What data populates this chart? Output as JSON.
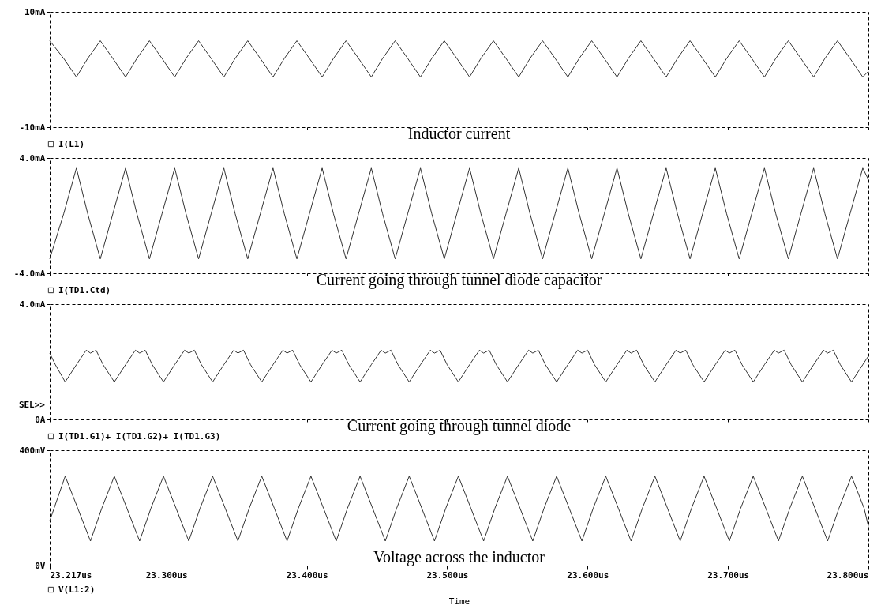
{
  "chart_data": [
    {
      "type": "line",
      "xlim": [
        23.217,
        23.8
      ],
      "xticks": [
        {
          "value": 23.217,
          "label": null
        },
        {
          "value": 23.3,
          "label": null
        },
        {
          "value": 23.4,
          "label": null
        },
        {
          "value": 23.5,
          "label": null
        },
        {
          "value": 23.6,
          "label": null
        },
        {
          "value": 23.7,
          "label": null
        },
        {
          "value": 23.8,
          "label": null
        }
      ],
      "ylim": [
        -10,
        10
      ],
      "yticks": [
        {
          "value": 10,
          "label": "10mA"
        },
        {
          "value": -10,
          "label": "-10mA"
        }
      ],
      "tick_labels": "y",
      "legend": "bottom left",
      "annotations": [
        "Inductor current"
      ],
      "x": [
        23.217,
        23.227,
        23.236,
        23.244,
        23.253,
        23.262,
        23.271,
        23.279,
        23.288,
        23.297,
        23.306,
        23.314,
        23.323,
        23.332,
        23.341,
        23.349,
        23.358,
        23.367,
        23.376,
        23.384,
        23.393,
        23.402,
        23.411,
        23.419,
        23.428,
        23.437,
        23.446,
        23.454,
        23.463,
        23.472,
        23.481,
        23.489,
        23.498,
        23.507,
        23.516,
        23.524,
        23.533,
        23.542,
        23.551,
        23.559,
        23.568,
        23.577,
        23.586,
        23.594,
        23.603,
        23.612,
        23.621,
        23.629,
        23.638,
        23.647,
        23.656,
        23.664,
        23.673,
        23.682,
        23.691,
        23.699,
        23.708,
        23.717,
        23.726,
        23.734,
        23.743,
        23.752,
        23.761,
        23.769,
        23.778,
        23.787,
        23.796,
        23.8
      ],
      "series": [
        {
          "name": "I(L1)",
          "color": "#333333",
          "values": [
            5,
            1.9,
            -1.3,
            1.9,
            5,
            1.9,
            -1.3,
            1.9,
            5,
            1.9,
            -1.3,
            1.9,
            5,
            1.9,
            -1.3,
            1.9,
            5,
            1.9,
            -1.3,
            1.9,
            5,
            1.9,
            -1.3,
            1.9,
            5,
            1.9,
            -1.3,
            1.9,
            5,
            1.9,
            -1.3,
            1.9,
            5,
            1.9,
            -1.3,
            1.9,
            5,
            1.9,
            -1.3,
            1.9,
            5,
            1.9,
            -1.3,
            1.9,
            5,
            1.9,
            -1.3,
            1.9,
            5,
            1.9,
            -1.3,
            1.9,
            5,
            1.9,
            -1.3,
            1.9,
            5,
            1.9,
            -1.3,
            1.9,
            5,
            1.9,
            -1.3,
            1.9,
            5,
            1.9,
            -1.3,
            -0.3
          ]
        }
      ]
    },
    {
      "type": "line",
      "xlim": [
        23.217,
        23.8
      ],
      "xticks": [
        {
          "value": 23.217,
          "label": null
        },
        {
          "value": 23.3,
          "label": null
        },
        {
          "value": 23.4,
          "label": null
        },
        {
          "value": 23.5,
          "label": null
        },
        {
          "value": 23.6,
          "label": null
        },
        {
          "value": 23.7,
          "label": null
        },
        {
          "value": 23.8,
          "label": null
        }
      ],
      "ylim": [
        -4,
        4
      ],
      "yticks": [
        {
          "value": 4,
          "label": "4.0mA"
        },
        {
          "value": -4,
          "label": "-4.0mA"
        }
      ],
      "tick_labels": "y",
      "legend": "bottom left",
      "annotations": [
        "Current going through tunnel diode capacitor"
      ],
      "x": [
        23.217,
        23.227,
        23.236,
        23.244,
        23.253,
        23.262,
        23.271,
        23.279,
        23.288,
        23.297,
        23.306,
        23.314,
        23.323,
        23.332,
        23.341,
        23.349,
        23.358,
        23.367,
        23.376,
        23.384,
        23.393,
        23.402,
        23.411,
        23.419,
        23.428,
        23.437,
        23.446,
        23.454,
        23.463,
        23.472,
        23.481,
        23.489,
        23.498,
        23.507,
        23.516,
        23.524,
        23.533,
        23.542,
        23.551,
        23.559,
        23.568,
        23.577,
        23.586,
        23.594,
        23.603,
        23.612,
        23.621,
        23.629,
        23.638,
        23.647,
        23.656,
        23.664,
        23.673,
        23.682,
        23.691,
        23.699,
        23.708,
        23.717,
        23.726,
        23.734,
        23.743,
        23.752,
        23.761,
        23.769,
        23.778,
        23.787,
        23.796,
        23.8
      ],
      "series": [
        {
          "name": "I(TD1.Ctd)",
          "color": "#333333",
          "values": [
            -3,
            0.15,
            3.3,
            0.15,
            -3,
            0.15,
            3.3,
            0.15,
            -3,
            0.15,
            3.3,
            0.15,
            -3,
            0.15,
            3.3,
            0.15,
            -3,
            0.15,
            3.3,
            0.15,
            -3,
            0.15,
            3.3,
            0.15,
            -3,
            0.15,
            3.3,
            0.15,
            -3,
            0.15,
            3.3,
            0.15,
            -3,
            0.15,
            3.3,
            0.15,
            -3,
            0.15,
            3.3,
            0.15,
            -3,
            0.15,
            3.3,
            0.15,
            -3,
            0.15,
            3.3,
            0.15,
            -3,
            0.15,
            3.3,
            0.15,
            -3,
            0.15,
            3.3,
            0.15,
            -3,
            0.15,
            3.3,
            0.15,
            -3,
            0.15,
            3.3,
            0.15,
            -3,
            0.15,
            3.3,
            2.5
          ]
        }
      ]
    },
    {
      "type": "line",
      "xlim": [
        23.217,
        23.8
      ],
      "xticks": [
        {
          "value": 23.217,
          "label": null
        },
        {
          "value": 23.3,
          "label": null
        },
        {
          "value": 23.4,
          "label": null
        },
        {
          "value": 23.5,
          "label": null
        },
        {
          "value": 23.6,
          "label": null
        },
        {
          "value": 23.7,
          "label": null
        },
        {
          "value": 23.8,
          "label": null
        }
      ],
      "ylim": [
        0,
        4
      ],
      "yticks": [
        {
          "value": 4,
          "label": "4.0mA"
        },
        {
          "value": 0,
          "label": "0A"
        }
      ],
      "tick_labels": "y",
      "legend": "bottom left",
      "annotations": [
        "Current going through tunnel diode",
        "SEL>>"
      ],
      "series": [
        {
          "name": "I(TD1.G1)+  I(TD1.G2)+ I(TD1.G3)",
          "color": "#333333",
          "x": [
            23.217,
            23.221,
            23.228,
            23.236,
            23.243,
            23.246,
            23.25,
            23.255,
            23.263,
            23.271,
            23.278,
            23.281,
            23.285,
            23.29,
            23.298,
            23.306,
            23.313,
            23.316,
            23.32,
            23.325,
            23.333,
            23.341,
            23.348,
            23.351,
            23.355,
            23.36,
            23.368,
            23.376,
            23.383,
            23.386,
            23.39,
            23.395,
            23.403,
            23.411,
            23.418,
            23.421,
            23.425,
            23.43,
            23.438,
            23.446,
            23.453,
            23.456,
            23.46,
            23.465,
            23.473,
            23.481,
            23.488,
            23.491,
            23.495,
            23.5,
            23.508,
            23.516,
            23.523,
            23.526,
            23.53,
            23.535,
            23.543,
            23.551,
            23.558,
            23.561,
            23.565,
            23.57,
            23.578,
            23.586,
            23.593,
            23.596,
            23.6,
            23.605,
            23.613,
            23.621,
            23.628,
            23.631,
            23.635,
            23.64,
            23.648,
            23.656,
            23.663,
            23.666,
            23.67,
            23.675,
            23.683,
            23.691,
            23.698,
            23.701,
            23.705,
            23.71,
            23.718,
            23.726,
            23.733,
            23.736,
            23.74,
            23.745,
            23.753,
            23.761,
            23.768,
            23.771,
            23.775,
            23.78,
            23.788,
            23.796,
            23.8
          ],
          "values": [
            2.3,
            1.9,
            1.3,
            1.9,
            2.4,
            2.3,
            2.4,
            1.9,
            1.3,
            1.9,
            2.4,
            2.3,
            2.4,
            1.9,
            1.3,
            1.9,
            2.4,
            2.3,
            2.4,
            1.9,
            1.3,
            1.9,
            2.4,
            2.3,
            2.4,
            1.9,
            1.3,
            1.9,
            2.4,
            2.3,
            2.4,
            1.9,
            1.3,
            1.9,
            2.4,
            2.3,
            2.4,
            1.9,
            1.3,
            1.9,
            2.4,
            2.3,
            2.4,
            1.9,
            1.3,
            1.9,
            2.4,
            2.3,
            2.4,
            1.9,
            1.3,
            1.9,
            2.4,
            2.3,
            2.4,
            1.9,
            1.3,
            1.9,
            2.4,
            2.3,
            2.4,
            1.9,
            1.3,
            1.9,
            2.4,
            2.3,
            2.4,
            1.9,
            1.3,
            1.9,
            2.4,
            2.3,
            2.4,
            1.9,
            1.3,
            1.9,
            2.4,
            2.3,
            2.4,
            1.9,
            1.3,
            1.9,
            2.4,
            2.3,
            2.4,
            1.9,
            1.3,
            1.9,
            2.4,
            2.3,
            2.4,
            1.9,
            1.3,
            1.9,
            2.4,
            2.3,
            2.4,
            1.9,
            1.3,
            1.9,
            2.2
          ]
        }
      ]
    },
    {
      "type": "line",
      "xlim": [
        23.217,
        23.8
      ],
      "xticks": [
        {
          "value": 23.217,
          "label": "23.217us"
        },
        {
          "value": 23.3,
          "label": "23.300us"
        },
        {
          "value": 23.4,
          "label": "23.400us"
        },
        {
          "value": 23.5,
          "label": "23.500us"
        },
        {
          "value": 23.6,
          "label": "23.600us"
        },
        {
          "value": 23.7,
          "label": "23.700us"
        },
        {
          "value": 23.8,
          "label": "23.800us"
        }
      ],
      "ylim": [
        0,
        400
      ],
      "yticks": [
        {
          "value": 400,
          "label": "400mV"
        },
        {
          "value": 0,
          "label": "0V"
        }
      ],
      "xlabel": "Time",
      "legend": "bottom left",
      "annotations": [
        "Voltage across the inductor"
      ],
      "series": [
        {
          "name": "V(L1:2)",
          "color": "#333333",
          "x": [
            23.217,
            23.228,
            23.237,
            23.246,
            23.254,
            23.263,
            23.272,
            23.281,
            23.289,
            23.298,
            23.307,
            23.316,
            23.324,
            23.333,
            23.342,
            23.351,
            23.359,
            23.368,
            23.377,
            23.386,
            23.394,
            23.403,
            23.412,
            23.421,
            23.429,
            23.438,
            23.447,
            23.456,
            23.464,
            23.473,
            23.482,
            23.491,
            23.499,
            23.508,
            23.517,
            23.526,
            23.534,
            23.543,
            23.552,
            23.561,
            23.569,
            23.578,
            23.587,
            23.596,
            23.604,
            23.613,
            23.622,
            23.631,
            23.639,
            23.648,
            23.657,
            23.666,
            23.674,
            23.683,
            23.692,
            23.701,
            23.709,
            23.718,
            23.727,
            23.736,
            23.744,
            23.753,
            23.762,
            23.771,
            23.779,
            23.788,
            23.797,
            23.8
          ],
          "values": [
            155,
            310,
            198,
            85,
            198,
            310,
            198,
            85,
            198,
            310,
            198,
            85,
            198,
            310,
            198,
            85,
            198,
            310,
            198,
            85,
            198,
            310,
            198,
            85,
            198,
            310,
            198,
            85,
            198,
            310,
            198,
            85,
            198,
            310,
            198,
            85,
            198,
            310,
            198,
            85,
            198,
            310,
            198,
            85,
            198,
            310,
            198,
            85,
            198,
            310,
            198,
            85,
            198,
            310,
            198,
            85,
            198,
            310,
            198,
            85,
            198,
            310,
            198,
            85,
            198,
            310,
            198,
            136
          ]
        }
      ]
    }
  ]
}
